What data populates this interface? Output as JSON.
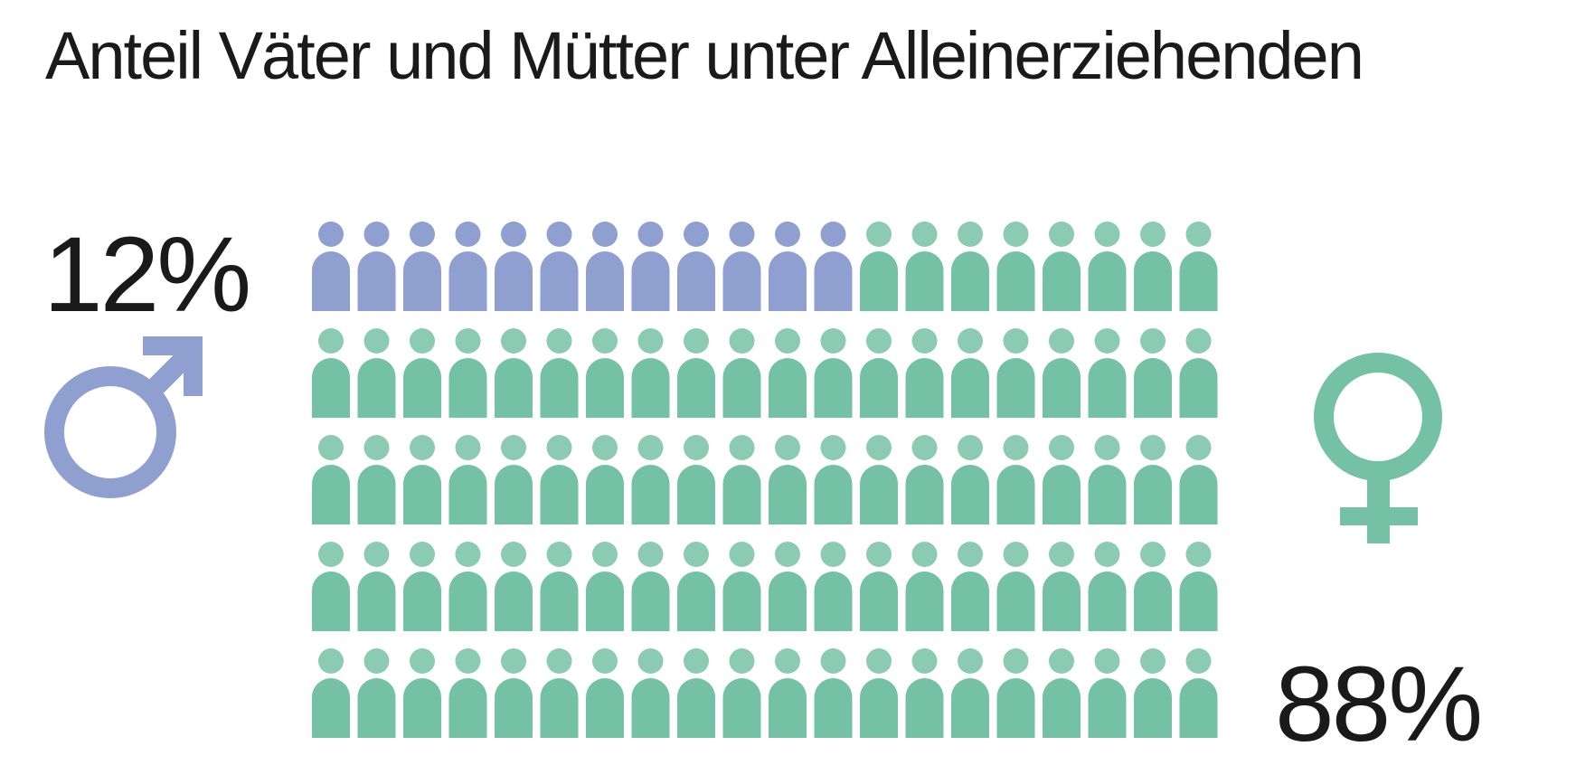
{
  "title": "Anteil Väter und Mütter unter Alleinerziehenden",
  "chart_data": {
    "type": "pictogram",
    "title": "Anteil Väter und Mütter unter Alleinerziehenden",
    "total_icons": 100,
    "rows": 5,
    "columns": 20,
    "series": [
      {
        "name": "Väter",
        "value": 12,
        "label": "12%",
        "symbol": "male-symbol-icon",
        "color": "#8fa0d0"
      },
      {
        "name": "Mütter",
        "value": 88,
        "label": "88%",
        "symbol": "female-symbol-icon",
        "color": "#74c1a5"
      }
    ]
  },
  "colors": {
    "male": "#8fa0d0",
    "female": "#74c1a5",
    "female_head": "#8ccbb3",
    "text": "#1a1a1a"
  }
}
